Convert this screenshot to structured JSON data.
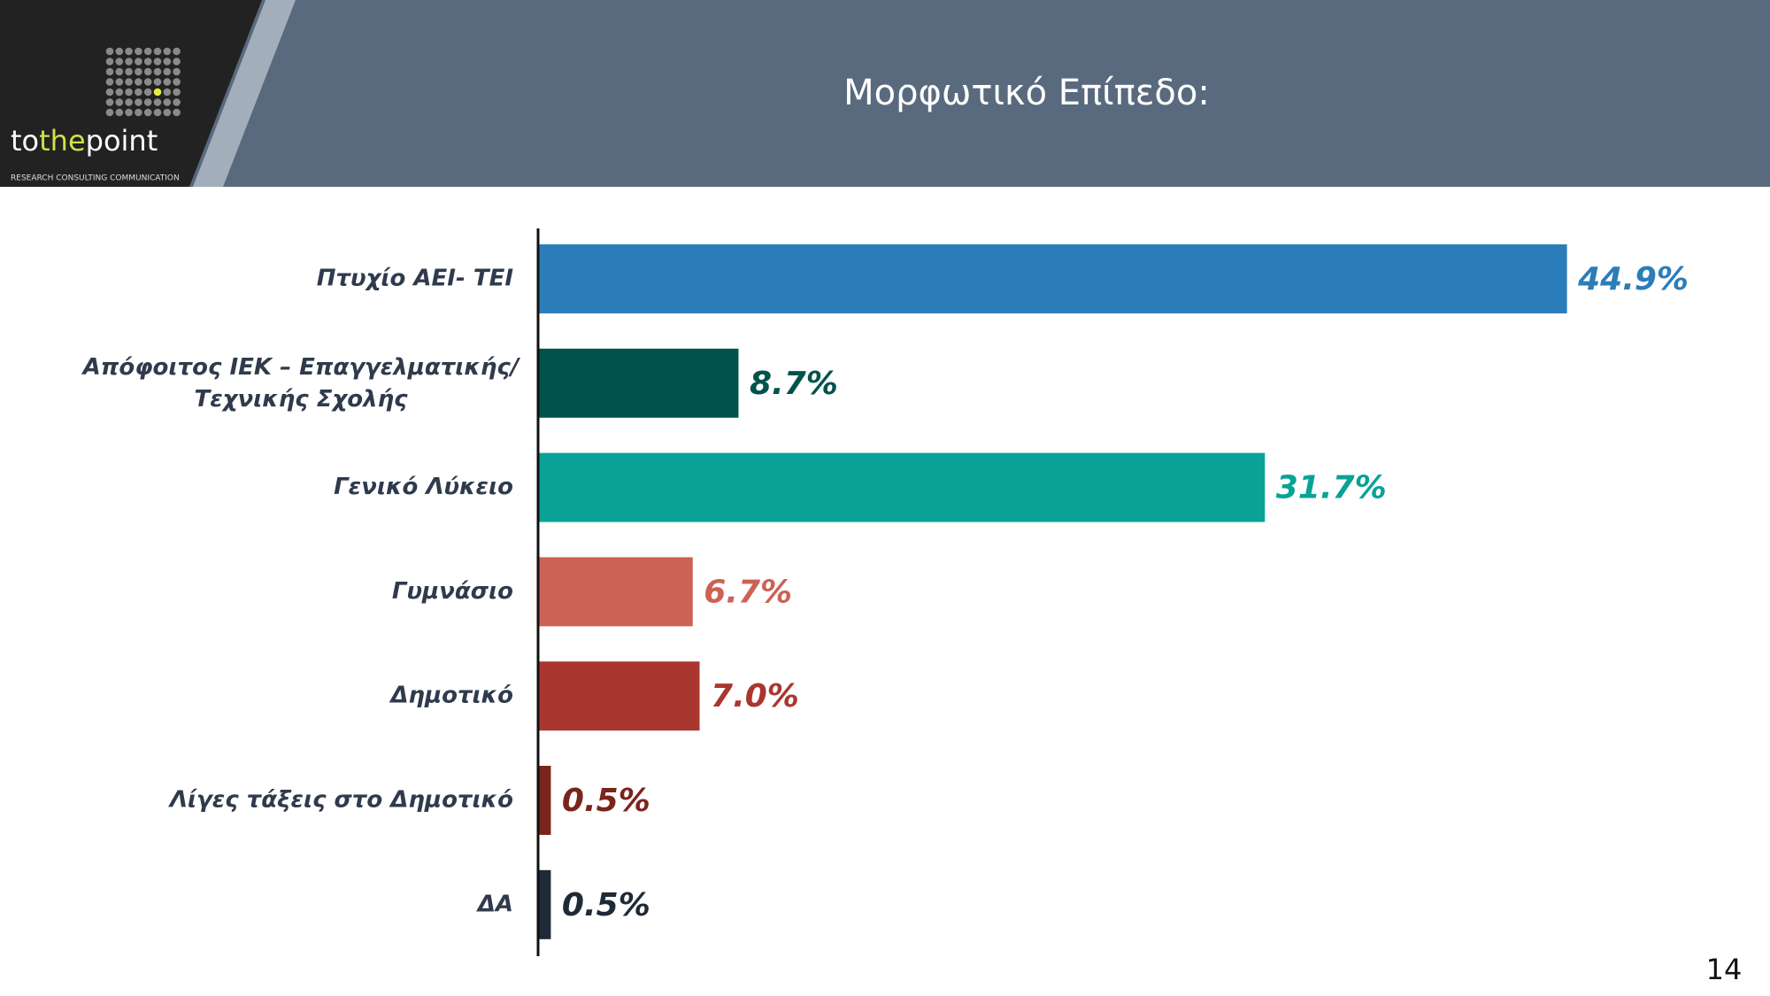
{
  "logo": {
    "brand_pre": "to",
    "brand_mid": "the",
    "brand_post": "point",
    "tagline": "RESEARCH  CONSULTING  COMMUNICATION"
  },
  "page_number": "14",
  "chart_data": {
    "type": "bar",
    "orientation": "horizontal",
    "title": "Μορφωτικό Επίπεδο:",
    "categories": [
      "Πτυχίο ΑΕΙ- ΤΕΙ",
      "Απόφοιτος ΙΕΚ – Επαγγελματικής/\nΤεχνικής Σχολής",
      "Γενικό Λύκειο",
      "Γυμνάσιο",
      "Δημοτικό",
      "Λίγες τάξεις στο Δημοτικό",
      "ΔΑ"
    ],
    "values": [
      44.9,
      8.7,
      31.7,
      6.7,
      7.0,
      0.5,
      0.5
    ],
    "value_labels": [
      "44.9%",
      "8.7%",
      "31.7%",
      "6.7%",
      "7.0%",
      "0.5%",
      "0.5%"
    ],
    "colors": [
      "#2b7db9",
      "#00534b",
      "#08a297",
      "#cd6155",
      "#a9372f",
      "#7b241c",
      "#1f2a37"
    ]
  }
}
